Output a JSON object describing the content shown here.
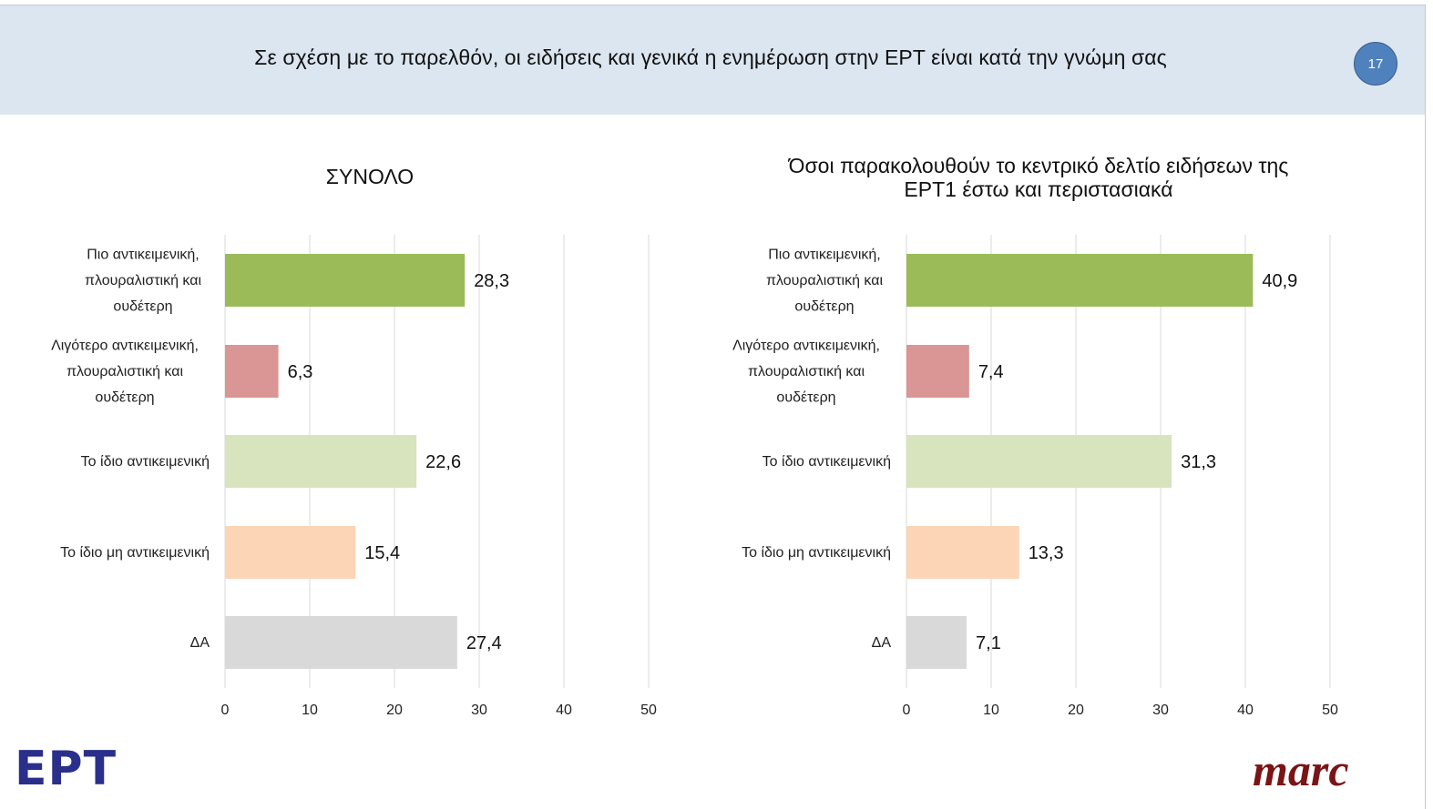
{
  "header": {
    "title": "Σε σχέση με το παρελθόν, οι ειδήσεις και γενικά η ενημέρωση στην ΕΡΤ είναι  κατά την γνώμη σας",
    "page_number": "17"
  },
  "logos": {
    "left": "ΕΡΤ",
    "right": "marc"
  },
  "colors": {
    "header_bg": "#dce6f1",
    "badge": "#4f81bd",
    "grid": "#d9d9d9",
    "bar_more_objective": "#9bbb59",
    "bar_less_objective": "#d99694",
    "bar_same_objective": "#d7e4bd",
    "bar_same_not_objective": "#fbd5b5",
    "bar_dk": "#d9d9d9"
  },
  "chart_data": [
    {
      "type": "bar",
      "orientation": "horizontal",
      "title": "ΣΥΝΟΛΟ",
      "title_lines": [
        "ΣΥΝΟΛΟ"
      ],
      "categories": [
        [
          "Πιο αντικειμενική,",
          "πλουραλιστική και",
          "ουδέτερη"
        ],
        [
          "Λιγότερο αντικειμενική,",
          "πλουραλιστική και",
          "ουδέτερη"
        ],
        [
          "Το ίδιο αντικειμενική"
        ],
        [
          "Το ίδιο μη αντικειμενική"
        ],
        [
          "ΔΑ"
        ]
      ],
      "values": [
        28.3,
        6.3,
        22.6,
        15.4,
        27.4
      ],
      "value_labels": [
        "28,3",
        "6,3",
        "22,6",
        "15,4",
        "27,4"
      ],
      "bar_colors": [
        "#9bbb59",
        "#d99694",
        "#d7e4bd",
        "#fbd5b5",
        "#d9d9d9"
      ],
      "xlim": [
        0,
        50
      ],
      "xticks": [
        0,
        10,
        20,
        30,
        40,
        50
      ],
      "grid": true,
      "xlabel": "",
      "ylabel": ""
    },
    {
      "type": "bar",
      "orientation": "horizontal",
      "title": "Όσοι παρακολουθούν το κεντρικό δελτίο ειδήσεων της ΕΡΤ1 έστω και περιστασιακά",
      "title_lines": [
        "Όσοι παρακολουθούν το κεντρικό δελτίο ειδήσεων της",
        "ΕΡΤ1 έστω και περιστασιακά"
      ],
      "categories": [
        [
          "Πιο αντικειμενική,",
          "πλουραλιστική και",
          "ουδέτερη"
        ],
        [
          "Λιγότερο αντικειμενική,",
          "πλουραλιστική και",
          "ουδέτερη"
        ],
        [
          "Το ίδιο αντικειμενική"
        ],
        [
          "Το ίδιο μη αντικειμενική"
        ],
        [
          "ΔΑ"
        ]
      ],
      "values": [
        40.9,
        7.4,
        31.3,
        13.3,
        7.1
      ],
      "value_labels": [
        "40,9",
        "7,4",
        "31,3",
        "13,3",
        "7,1"
      ],
      "bar_colors": [
        "#9bbb59",
        "#d99694",
        "#d7e4bd",
        "#fbd5b5",
        "#d9d9d9"
      ],
      "xlim": [
        0,
        50
      ],
      "xticks": [
        0,
        10,
        20,
        30,
        40,
        50
      ],
      "grid": true,
      "xlabel": "",
      "ylabel": ""
    }
  ]
}
